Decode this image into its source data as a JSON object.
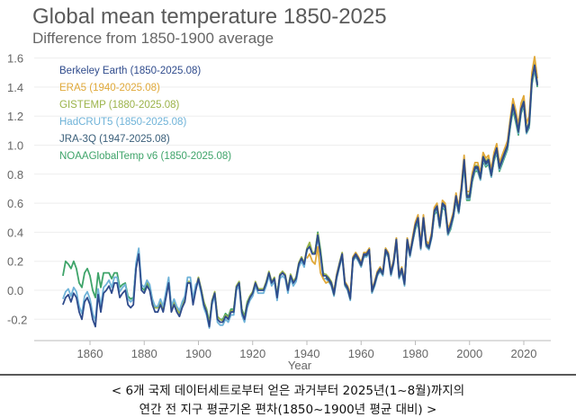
{
  "chart_data": {
    "type": "line",
    "title": "Global mean temperature 1850-2025",
    "subtitle": "Difference from 1850-1900 average",
    "xlabel": "Year",
    "ylabel": "",
    "xlim": [
      1850,
      2026
    ],
    "ylim": [
      -0.25,
      1.65
    ],
    "x_ticks": [
      1860,
      1880,
      1900,
      1920,
      1940,
      1960,
      1980,
      2000,
      2020
    ],
    "y_ticks": [
      -0.2,
      0.0,
      0.2,
      0.4,
      0.6,
      0.8,
      1.0,
      1.2,
      1.4,
      1.6
    ],
    "y_tick_labels": [
      "-0.2",
      "0.0",
      "0.2",
      "0.4",
      "0.6",
      "0.8",
      "1.0",
      "1.2",
      "1.4",
      "1.6"
    ],
    "grid": "horizontal",
    "legend_placement": "top-left",
    "series": [
      {
        "name": "NOAAGlobalTemp v6 (1850-2025.08)",
        "color": "#3fa46a",
        "start": 1850,
        "values": [
          0.1,
          0.2,
          0.18,
          0.15,
          0.2,
          0.15,
          0.05,
          0.02,
          0.12,
          0.15,
          0.1,
          0.0,
          -0.05,
          0.12,
          0.02,
          0.12,
          0.12,
          0.12,
          0.08,
          0.12,
          0.12,
          0.02,
          0.04,
          0.05,
          -0.04,
          -0.06,
          -0.05,
          0.18,
          0.26,
          0.02,
          0.0,
          0.05,
          0.02,
          -0.08,
          -0.12,
          -0.12,
          -0.08,
          -0.12,
          -0.03,
          0.06,
          -0.12,
          -0.08,
          -0.12,
          -0.15,
          -0.1,
          -0.06,
          0.05,
          0.05,
          -0.08,
          0.01,
          0.08,
          0.01,
          -0.08,
          -0.13,
          -0.22,
          -0.07,
          -0.02,
          -0.18,
          -0.2,
          -0.2,
          -0.16,
          -0.18,
          -0.13,
          -0.13,
          0.03,
          0.06,
          -0.13,
          -0.18,
          -0.08,
          -0.04,
          -0.01,
          0.05,
          0.01,
          0.01,
          0.0,
          0.05,
          0.12,
          0.06,
          0.08,
          -0.03,
          0.1,
          0.13,
          0.1,
          0.01,
          0.11,
          0.06,
          0.09,
          0.18,
          0.22,
          0.19,
          0.27,
          0.32,
          0.26,
          0.26,
          0.4,
          0.28,
          0.12,
          0.1,
          0.08,
          0.06,
          -0.01,
          0.1,
          0.18,
          0.24,
          0.05,
          0.02,
          -0.04,
          0.2,
          0.24,
          0.21,
          0.18,
          0.24,
          0.24,
          0.27,
          0.0,
          0.04,
          0.12,
          0.14,
          0.12,
          0.26,
          0.23,
          0.12,
          0.19,
          0.33,
          0.1,
          0.14,
          0.05,
          0.33,
          0.24,
          0.33,
          0.42,
          0.47,
          0.3,
          0.48,
          0.3,
          0.29,
          0.36,
          0.52,
          0.55,
          0.43,
          0.57,
          0.55,
          0.38,
          0.42,
          0.5,
          0.62,
          0.53,
          0.68,
          0.86,
          0.62,
          0.62,
          0.75,
          0.82,
          0.82,
          0.76,
          0.89,
          0.85,
          0.87,
          0.78,
          0.89,
          0.95,
          0.82,
          0.87,
          0.92,
          0.97,
          1.12,
          1.24,
          1.16,
          1.07,
          1.22,
          1.27,
          1.08,
          1.12,
          1.42,
          1.52,
          1.4
        ]
      },
      {
        "name": "GISTEMP (1880-2025.08)",
        "color": "#9bb34a",
        "start": 1880,
        "values": [
          0.02,
          0.06,
          0.03,
          -0.06,
          -0.12,
          -0.12,
          -0.08,
          -0.13,
          -0.02,
          0.08,
          -0.12,
          -0.08,
          -0.13,
          -0.16,
          -0.11,
          -0.07,
          0.06,
          0.06,
          -0.08,
          0.02,
          0.09,
          0.01,
          -0.08,
          -0.14,
          -0.23,
          -0.07,
          -0.01,
          -0.18,
          -0.2,
          -0.21,
          -0.17,
          -0.19,
          -0.14,
          -0.14,
          0.03,
          0.06,
          -0.14,
          -0.19,
          -0.09,
          -0.04,
          -0.01,
          0.06,
          0.01,
          0.01,
          0.01,
          0.06,
          0.13,
          0.06,
          0.09,
          -0.04,
          0.11,
          0.13,
          0.11,
          0.01,
          0.11,
          0.06,
          0.09,
          0.19,
          0.23,
          0.19,
          0.29,
          0.33,
          0.26,
          0.26,
          0.39,
          0.26,
          0.11,
          0.11,
          0.09,
          0.06,
          -0.01,
          0.11,
          0.19,
          0.26,
          0.06,
          0.03,
          -0.04,
          0.23,
          0.26,
          0.23,
          0.19,
          0.26,
          0.26,
          0.29,
          0.01,
          0.06,
          0.13,
          0.16,
          0.13,
          0.29,
          0.26,
          0.13,
          0.21,
          0.36,
          0.11,
          0.16,
          0.06,
          0.36,
          0.26,
          0.36,
          0.46,
          0.51,
          0.31,
          0.51,
          0.33,
          0.31,
          0.39,
          0.56,
          0.59,
          0.46,
          0.61,
          0.59,
          0.41,
          0.46,
          0.53,
          0.66,
          0.56,
          0.71,
          0.9,
          0.66,
          0.66,
          0.79,
          0.86,
          0.86,
          0.79,
          0.93,
          0.89,
          0.91,
          0.81,
          0.93,
          0.99,
          0.86,
          0.91,
          0.96,
          1.01,
          1.16,
          1.29,
          1.21,
          1.11,
          1.26,
          1.31,
          1.11,
          1.16,
          1.47,
          1.56,
          1.43
        ]
      },
      {
        "name": "HadCRUT5 (1850-2025.08)",
        "color": "#6fb3d8",
        "start": 1850,
        "values": [
          -0.06,
          -0.01,
          0.01,
          -0.04,
          0.02,
          -0.01,
          -0.11,
          -0.16,
          -0.04,
          -0.01,
          -0.06,
          -0.16,
          -0.21,
          0.01,
          -0.11,
          0.02,
          0.04,
          0.07,
          0.02,
          0.09,
          0.09,
          -0.01,
          0.02,
          0.04,
          -0.06,
          -0.08,
          -0.06,
          0.19,
          0.29,
          0.04,
          0.02,
          0.07,
          0.04,
          -0.06,
          -0.11,
          -0.11,
          -0.06,
          -0.11,
          -0.01,
          0.09,
          -0.11,
          -0.06,
          -0.11,
          -0.14,
          -0.08,
          -0.04,
          0.09,
          0.09,
          -0.06,
          0.04,
          0.06,
          -0.02,
          -0.12,
          -0.17,
          -0.26,
          -0.1,
          -0.04,
          -0.22,
          -0.24,
          -0.24,
          -0.2,
          -0.22,
          -0.17,
          -0.17,
          0.0,
          0.03,
          -0.17,
          -0.22,
          -0.12,
          -0.07,
          -0.04,
          0.03,
          -0.02,
          -0.02,
          -0.02,
          0.03,
          0.1,
          0.03,
          0.06,
          -0.07,
          0.08,
          0.1,
          0.08,
          -0.02,
          0.08,
          0.03,
          0.06,
          0.16,
          0.2,
          0.16,
          0.28,
          0.3,
          0.25,
          0.25,
          0.36,
          0.24,
          0.08,
          0.08,
          0.06,
          0.03,
          -0.04,
          0.08,
          0.16,
          0.23,
          0.03,
          0.0,
          -0.07,
          0.2,
          0.23,
          0.2,
          0.16,
          0.23,
          0.23,
          0.26,
          -0.02,
          0.03,
          0.1,
          0.13,
          0.1,
          0.26,
          0.23,
          0.1,
          0.18,
          0.33,
          0.08,
          0.13,
          0.03,
          0.33,
          0.23,
          0.33,
          0.43,
          0.48,
          0.28,
          0.48,
          0.3,
          0.28,
          0.36,
          0.53,
          0.56,
          0.43,
          0.58,
          0.56,
          0.38,
          0.43,
          0.5,
          0.63,
          0.53,
          0.68,
          0.88,
          0.63,
          0.63,
          0.76,
          0.83,
          0.83,
          0.76,
          0.9,
          0.86,
          0.88,
          0.78,
          0.9,
          0.96,
          0.83,
          0.88,
          0.93,
          0.98,
          1.13,
          1.26,
          1.18,
          1.08,
          1.23,
          1.28,
          1.08,
          1.13,
          1.44,
          1.53,
          1.41
        ]
      },
      {
        "name": "ERA5 (1940-2025.08)",
        "color": "#e0a93a",
        "start": 1940,
        "values": [
          0.22,
          0.25,
          0.2,
          0.18,
          0.3,
          0.12,
          0.08,
          0.05,
          0.06,
          0.05,
          -0.01,
          0.11,
          0.18,
          0.25,
          0.06,
          0.03,
          -0.03,
          0.23,
          0.26,
          0.23,
          0.19,
          0.26,
          0.26,
          0.29,
          0.01,
          0.06,
          0.13,
          0.16,
          0.13,
          0.29,
          0.26,
          0.13,
          0.21,
          0.36,
          0.11,
          0.16,
          0.06,
          0.36,
          0.26,
          0.37,
          0.47,
          0.52,
          0.32,
          0.52,
          0.34,
          0.32,
          0.4,
          0.57,
          0.6,
          0.47,
          0.62,
          0.6,
          0.42,
          0.47,
          0.54,
          0.67,
          0.57,
          0.73,
          0.93,
          0.68,
          0.68,
          0.81,
          0.88,
          0.88,
          0.81,
          0.95,
          0.91,
          0.93,
          0.83,
          0.95,
          1.01,
          0.88,
          0.93,
          0.98,
          1.03,
          1.18,
          1.32,
          1.24,
          1.14,
          1.29,
          1.34,
          1.15,
          1.2,
          1.5,
          1.61,
          1.46
        ]
      },
      {
        "name": "JRA-3Q (1947-2025.08)",
        "color": "#3a5f7a",
        "start": 1947,
        "values": [
          0.09,
          0.07,
          0.04,
          -0.03,
          0.09,
          0.17,
          0.24,
          0.04,
          0.01,
          -0.06,
          0.21,
          0.24,
          0.21,
          0.17,
          0.24,
          0.24,
          0.27,
          -0.01,
          0.04,
          0.11,
          0.14,
          0.11,
          0.27,
          0.24,
          0.11,
          0.19,
          0.34,
          0.09,
          0.14,
          0.04,
          0.34,
          0.24,
          0.34,
          0.44,
          0.49,
          0.29,
          0.49,
          0.31,
          0.29,
          0.37,
          0.54,
          0.57,
          0.44,
          0.59,
          0.57,
          0.39,
          0.44,
          0.51,
          0.64,
          0.54,
          0.69,
          0.89,
          0.64,
          0.64,
          0.77,
          0.84,
          0.84,
          0.77,
          0.91,
          0.87,
          0.89,
          0.79,
          0.91,
          0.97,
          0.84,
          0.89,
          0.94,
          0.99,
          1.14,
          1.27,
          1.19,
          1.09,
          1.24,
          1.29,
          1.09,
          1.14,
          1.45,
          1.55,
          1.41
        ]
      },
      {
        "name": "Berkeley Earth (1850-2025.08)",
        "color": "#2f4b8c",
        "start": 1850,
        "values": [
          -0.1,
          -0.05,
          -0.03,
          -0.08,
          -0.02,
          -0.05,
          -0.15,
          -0.2,
          -0.08,
          -0.05,
          -0.1,
          -0.2,
          -0.25,
          -0.03,
          -0.15,
          -0.02,
          0.0,
          0.03,
          -0.02,
          0.05,
          0.05,
          -0.05,
          -0.02,
          0.0,
          -0.1,
          -0.12,
          -0.1,
          0.15,
          0.25,
          0.0,
          -0.02,
          0.03,
          0.0,
          -0.1,
          -0.15,
          -0.15,
          -0.1,
          -0.15,
          -0.05,
          0.05,
          -0.15,
          -0.1,
          -0.15,
          -0.18,
          -0.12,
          -0.08,
          0.05,
          0.05,
          -0.1,
          0.0,
          0.08,
          0.0,
          -0.1,
          -0.15,
          -0.25,
          -0.08,
          -0.02,
          -0.2,
          -0.22,
          -0.22,
          -0.18,
          -0.2,
          -0.15,
          -0.15,
          0.02,
          0.05,
          -0.15,
          -0.2,
          -0.1,
          -0.05,
          -0.02,
          0.05,
          0.0,
          0.0,
          0.0,
          0.05,
          0.12,
          0.05,
          0.08,
          -0.05,
          0.1,
          0.12,
          0.1,
          0.0,
          0.1,
          0.05,
          0.08,
          0.18,
          0.22,
          0.18,
          0.28,
          0.3,
          0.25,
          0.25,
          0.38,
          0.25,
          0.1,
          0.1,
          0.08,
          0.05,
          -0.02,
          0.1,
          0.18,
          0.25,
          0.05,
          0.02,
          -0.05,
          0.22,
          0.25,
          0.22,
          0.18,
          0.25,
          0.25,
          0.28,
          0.0,
          0.05,
          0.12,
          0.15,
          0.12,
          0.28,
          0.25,
          0.12,
          0.2,
          0.35,
          0.1,
          0.15,
          0.05,
          0.35,
          0.25,
          0.35,
          0.45,
          0.5,
          0.3,
          0.5,
          0.32,
          0.3,
          0.38,
          0.55,
          0.58,
          0.45,
          0.6,
          0.58,
          0.4,
          0.45,
          0.52,
          0.65,
          0.55,
          0.7,
          0.9,
          0.65,
          0.65,
          0.78,
          0.85,
          0.85,
          0.78,
          0.92,
          0.88,
          0.9,
          0.8,
          0.92,
          0.98,
          0.85,
          0.9,
          0.95,
          1.0,
          1.15,
          1.28,
          1.2,
          1.1,
          1.25,
          1.3,
          1.1,
          1.15,
          1.45,
          1.55,
          1.42
        ]
      }
    ],
    "legend": [
      {
        "label": "Berkeley Earth (1850-2025.08)",
        "color": "#2f4b8c"
      },
      {
        "label": "ERA5 (1940-2025.08)",
        "color": "#e0a93a"
      },
      {
        "label": "GISTEMP (1880-2025.08)",
        "color": "#9bb34a"
      },
      {
        "label": "HadCRUT5 (1850-2025.08)",
        "color": "#6fb3d8"
      },
      {
        "label": "JRA-3Q (1947-2025.08)",
        "color": "#3a5f7a"
      },
      {
        "label": "NOAAGlobalTemp v6 (1850-2025.08)",
        "color": "#3fa46a"
      }
    ]
  },
  "caption": {
    "line1": "< 6개 국제 데이터세트로부터 얻은 과거부터 2025년(1~8월)까지의",
    "line2": "연간 전 지구 평균기온 편차(1850~1900년 평균 대비) >"
  }
}
